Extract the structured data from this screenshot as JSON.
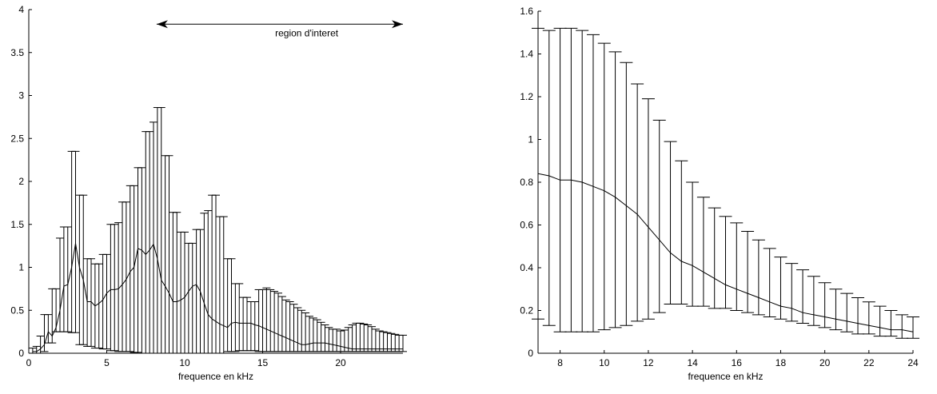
{
  "chart_data": [
    {
      "type": "line",
      "subtype": "line-with-error-bars",
      "xlabel": "frequence en kHz",
      "ylabel": "",
      "xlim": [
        0,
        24
      ],
      "ylim": [
        0,
        4
      ],
      "xticks": [
        0,
        5,
        10,
        15,
        20
      ],
      "yticks": [
        0,
        0.5,
        1,
        1.5,
        2,
        2.5,
        3,
        3.5,
        4
      ],
      "xtick_labels": [
        "0",
        "5",
        "10",
        "15",
        "20"
      ],
      "ytick_labels": [
        "0",
        "0.5",
        "1",
        "1.5",
        "2",
        "2.5",
        "3",
        "3.5",
        "4"
      ],
      "annotation": {
        "text": "region d'interet",
        "x_from": 8.2,
        "x_to": 24,
        "y": 3.83
      },
      "series": [
        {
          "x": [
            0.25,
            0.5,
            0.75,
            1,
            1.25,
            1.5,
            1.75,
            2,
            2.25,
            2.5,
            2.75,
            3,
            3.25,
            3.5,
            3.75,
            4,
            4.25,
            4.5,
            4.75,
            5,
            5.25,
            5.5,
            5.75,
            6,
            6.25,
            6.5,
            6.75,
            7,
            7.25,
            7.5,
            7.75,
            8,
            8.25,
            8.5,
            8.75,
            9,
            9.25,
            9.5,
            9.75,
            10,
            10.25,
            10.5,
            10.75,
            11,
            11.25,
            11.5,
            11.75,
            12,
            12.25,
            12.5,
            12.75,
            13,
            13.25,
            13.5,
            13.75,
            14,
            14.25,
            14.5,
            14.75,
            15,
            15.25,
            15.5,
            15.75,
            16,
            16.25,
            16.5,
            16.75,
            17,
            17.25,
            17.5,
            17.75,
            18,
            18.25,
            18.5,
            18.75,
            19,
            19.25,
            19.5,
            19.75,
            20,
            20.25,
            20.5,
            20.75,
            21,
            21.25,
            21.5,
            21.75,
            22,
            22.25,
            22.5,
            22.75,
            23,
            23.25,
            23.5,
            23.75,
            24
          ],
          "y": [
            0.02,
            0.02,
            0.05,
            0.1,
            0.25,
            0.2,
            0.3,
            0.5,
            0.78,
            0.8,
            1.0,
            1.28,
            1.0,
            0.85,
            0.6,
            0.6,
            0.55,
            0.58,
            0.62,
            0.7,
            0.74,
            0.74,
            0.75,
            0.8,
            0.86,
            0.95,
            1.0,
            1.22,
            1.2,
            1.15,
            1.2,
            1.27,
            1.1,
            0.85,
            0.78,
            0.7,
            0.6,
            0.6,
            0.62,
            0.65,
            0.72,
            0.78,
            0.8,
            0.72,
            0.58,
            0.45,
            0.4,
            0.37,
            0.34,
            0.32,
            0.3,
            0.35,
            0.36,
            0.35,
            0.35,
            0.35,
            0.35,
            0.33,
            0.32,
            0.3,
            0.28,
            0.26,
            0.24,
            0.22,
            0.2,
            0.18,
            0.16,
            0.14,
            0.12,
            0.1,
            0.1,
            0.11,
            0.12,
            0.12,
            0.12,
            0.12,
            0.11,
            0.1,
            0.09,
            0.08,
            0.07,
            0.06,
            0.05,
            0.05,
            0.05,
            0.05,
            0.05,
            0.05,
            0.05,
            0.05,
            0.05,
            0.05,
            0.05,
            0.05,
            0.05,
            0.05
          ],
          "upper": [
            0.06,
            0.08,
            0.2,
            0.45,
            0.45,
            0.75,
            0.75,
            1.34,
            1.47,
            1.47,
            2.35,
            2.35,
            1.84,
            1.84,
            1.1,
            1.1,
            1.04,
            1.04,
            1.15,
            1.15,
            1.5,
            1.5,
            1.52,
            1.76,
            1.76,
            1.95,
            1.95,
            2.16,
            2.16,
            2.58,
            2.58,
            2.69,
            2.86,
            2.86,
            2.3,
            2.3,
            1.64,
            1.64,
            1.41,
            1.41,
            1.28,
            1.28,
            1.44,
            1.44,
            1.63,
            1.66,
            1.84,
            1.84,
            1.59,
            1.59,
            1.1,
            1.1,
            0.81,
            0.81,
            0.65,
            0.65,
            0.6,
            0.6,
            0.74,
            0.74,
            0.76,
            0.74,
            0.72,
            0.7,
            0.66,
            0.62,
            0.6,
            0.57,
            0.53,
            0.5,
            0.47,
            0.43,
            0.41,
            0.39,
            0.36,
            0.33,
            0.3,
            0.28,
            0.28,
            0.26,
            0.27,
            0.3,
            0.33,
            0.35,
            0.35,
            0.34,
            0.33,
            0.31,
            0.28,
            0.26,
            0.25,
            0.24,
            0.23,
            0.22,
            0.21,
            0.21
          ],
          "lower": [
            0,
            0,
            0,
            0.02,
            0.12,
            0.12,
            0.25,
            0.25,
            0.25,
            0.25,
            0.24,
            0.24,
            0.1,
            0.1,
            0.08,
            0.08,
            0.06,
            0.06,
            0.05,
            0.05,
            0.03,
            0.03,
            0.02,
            0.02,
            0.02,
            0.02,
            0.01,
            0.01,
            0,
            0,
            0,
            0,
            0,
            0,
            0,
            0,
            0,
            0,
            0,
            0,
            0,
            0,
            0,
            0,
            0,
            0,
            0,
            0,
            0,
            0,
            0.02,
            0.02,
            0.02,
            0.03,
            0.03,
            0.03,
            0.03,
            0.03,
            0.02,
            0.02,
            0.02,
            0.02,
            0.02,
            0.02,
            0.02,
            0.02,
            0.02,
            0.02,
            0.02,
            0.02,
            0.02,
            0.02,
            0.02,
            0.02,
            0.02,
            0.02,
            0.02,
            0.02,
            0.02,
            0.02,
            0.02,
            0.02,
            0.02,
            0.02,
            0.02,
            0.02,
            0.02,
            0.02,
            0.02,
            0.02,
            0.02,
            0.02,
            0.02,
            0.02,
            0.02,
            0.02
          ]
        }
      ]
    },
    {
      "type": "line",
      "subtype": "line-with-error-bars",
      "xlabel": "frequence en kHz",
      "ylabel": "",
      "xlim": [
        7,
        24
      ],
      "ylim": [
        0,
        1.6
      ],
      "xticks": [
        8,
        10,
        12,
        14,
        16,
        18,
        20,
        22,
        24
      ],
      "yticks": [
        0,
        0.2,
        0.4,
        0.6,
        0.8,
        1,
        1.2,
        1.4,
        1.6
      ],
      "xtick_labels": [
        "8",
        "10",
        "12",
        "14",
        "16",
        "18",
        "20",
        "22",
        "24"
      ],
      "ytick_labels": [
        "0",
        "0.2",
        "0.4",
        "0.6",
        "0.8",
        "1",
        "1.2",
        "1.4",
        "1.6"
      ],
      "series": [
        {
          "x": [
            7,
            7.5,
            8,
            8.5,
            9,
            9.5,
            10,
            10.5,
            11,
            11.5,
            12,
            12.5,
            13,
            13.5,
            14,
            14.5,
            15,
            15.5,
            16,
            16.5,
            17,
            17.5,
            18,
            18.5,
            19,
            19.5,
            20,
            20.5,
            21,
            21.5,
            22,
            22.5,
            23,
            23.5,
            24
          ],
          "y": [
            0.84,
            0.83,
            0.81,
            0.81,
            0.8,
            0.78,
            0.76,
            0.73,
            0.69,
            0.65,
            0.59,
            0.53,
            0.47,
            0.43,
            0.41,
            0.38,
            0.35,
            0.32,
            0.3,
            0.28,
            0.26,
            0.24,
            0.22,
            0.21,
            0.19,
            0.18,
            0.17,
            0.16,
            0.15,
            0.14,
            0.13,
            0.12,
            0.11,
            0.11,
            0.1
          ],
          "upper": [
            1.52,
            1.51,
            1.52,
            1.52,
            1.51,
            1.49,
            1.45,
            1.41,
            1.36,
            1.26,
            1.19,
            1.09,
            0.99,
            0.9,
            0.8,
            0.73,
            0.68,
            0.64,
            0.61,
            0.57,
            0.53,
            0.49,
            0.45,
            0.42,
            0.39,
            0.36,
            0.33,
            0.3,
            0.28,
            0.26,
            0.24,
            0.22,
            0.2,
            0.18,
            0.17
          ],
          "lower": [
            0.16,
            0.13,
            0.1,
            0.1,
            0.1,
            0.1,
            0.11,
            0.12,
            0.13,
            0.15,
            0.16,
            0.19,
            0.23,
            0.23,
            0.22,
            0.22,
            0.21,
            0.21,
            0.2,
            0.19,
            0.18,
            0.17,
            0.16,
            0.15,
            0.14,
            0.13,
            0.12,
            0.11,
            0.1,
            0.09,
            0.09,
            0.08,
            0.08,
            0.07,
            0.07
          ]
        }
      ]
    }
  ]
}
